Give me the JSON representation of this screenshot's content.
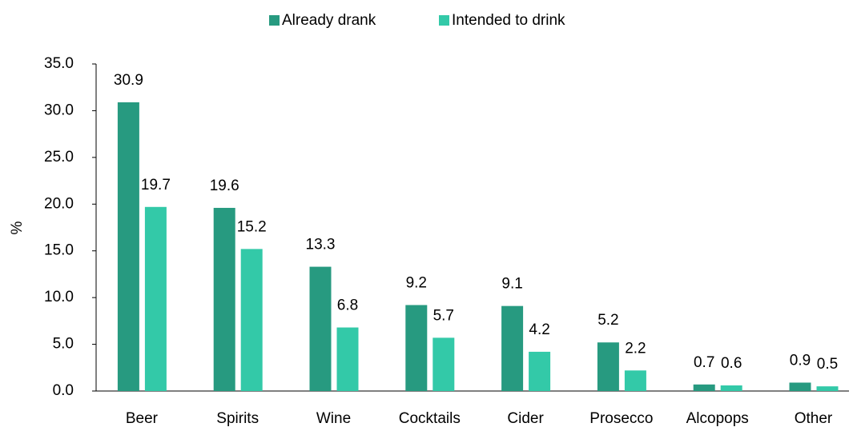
{
  "chart_data": {
    "type": "bar",
    "categories": [
      "Beer",
      "Spirits",
      "Wine",
      "Cocktails",
      "Cider",
      "Prosecco",
      "Alcopops",
      "Other"
    ],
    "series": [
      {
        "name": "Already drank",
        "color": "#279a80",
        "values": [
          30.9,
          19.6,
          13.3,
          9.2,
          9.1,
          5.2,
          0.7,
          0.9
        ]
      },
      {
        "name": "Intended to drink",
        "color": "#33c9a8",
        "values": [
          19.7,
          15.2,
          6.8,
          5.7,
          4.2,
          2.2,
          0.6,
          0.5
        ]
      }
    ],
    "y_label": "%",
    "ylim": [
      0,
      35
    ],
    "yticks": [
      {
        "value": 0,
        "label": "0.0"
      },
      {
        "value": 5,
        "label": "5.0"
      },
      {
        "value": 10,
        "label": "10.0"
      },
      {
        "value": 15,
        "label": "15.0"
      },
      {
        "value": 20,
        "label": "20.0"
      },
      {
        "value": 25,
        "label": "25.0"
      },
      {
        "value": 30,
        "label": "30.0"
      },
      {
        "value": 35,
        "label": "35.0"
      }
    ],
    "legend": "top"
  }
}
